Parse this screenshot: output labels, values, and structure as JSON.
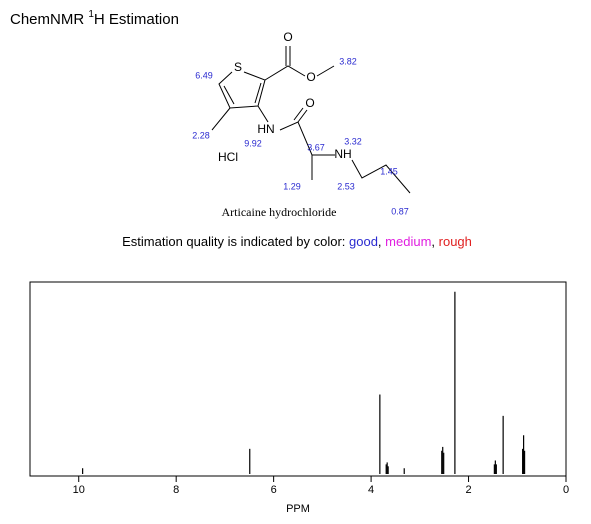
{
  "title": {
    "pre": "ChemNMR ",
    "sup": "1",
    "post": "H Estimation"
  },
  "molecule": {
    "name": "Articaine hydrochloride",
    "atoms": [
      "S",
      "O",
      "O",
      "HN",
      "O",
      "NH",
      "HCl"
    ],
    "shifts": [
      "6.49",
      "3.82",
      "2.28",
      "9.92",
      "3.67",
      "3.32",
      "1.29",
      "2.53",
      "1.45",
      "0.87"
    ]
  },
  "quality": {
    "text": "Estimation quality is indicated by color: ",
    "levels": [
      {
        "label": "good",
        "color": "#2a2ad0"
      },
      {
        "label": "medium",
        "color": "#e020e0"
      },
      {
        "label": "rough",
        "color": "#e02020"
      }
    ]
  },
  "chart_data": {
    "type": "spectrum",
    "x_label": "PPM",
    "color": "#000000",
    "xlim": [
      11,
      0
    ],
    "xticks": [
      10,
      8,
      6,
      4,
      2,
      0
    ],
    "ylim": [
      0,
      100
    ],
    "peaks": {
      "ppm": [
        9.92,
        6.49,
        3.82,
        3.69,
        3.67,
        3.65,
        3.32,
        2.55,
        2.53,
        2.51,
        2.28,
        1.47,
        1.45,
        1.43,
        1.29,
        0.89,
        0.87,
        0.85
      ],
      "height": [
        4,
        14,
        42,
        6,
        7,
        5,
        4,
        13,
        15,
        12,
        95,
        6,
        8,
        6,
        31,
        14,
        21,
        13
      ]
    }
  }
}
